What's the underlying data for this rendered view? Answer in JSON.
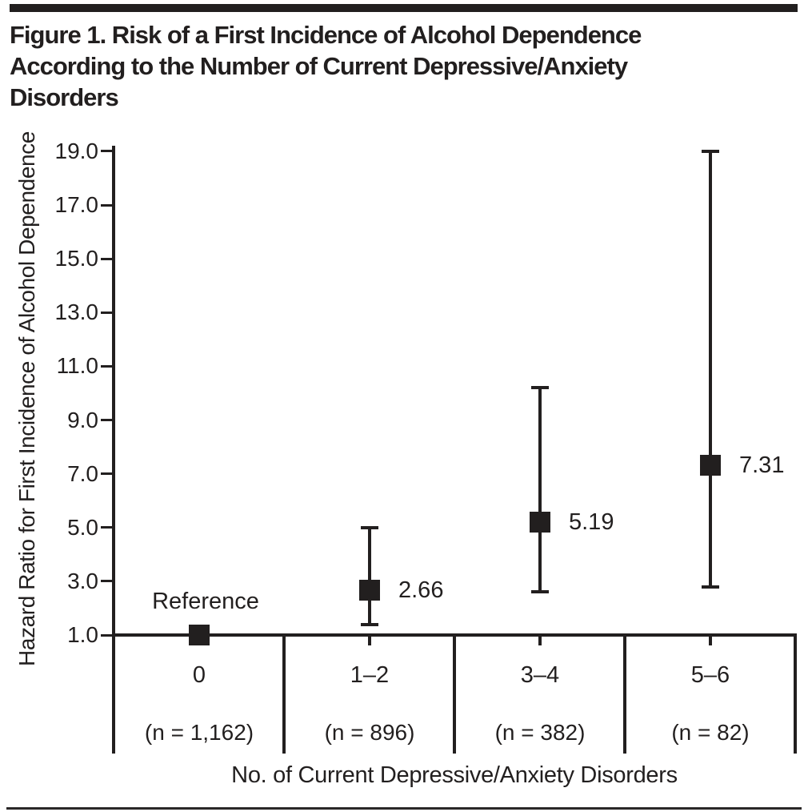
{
  "chart_data": {
    "type": "scatter",
    "title": "Figure 1. Risk of a First Incidence of Alcohol Dependence According to the Number of Current Depressive/Anxiety Disorders",
    "title_lines": [
      "Figure 1. Risk of a First Incidence of Alcohol Dependence",
      "According to the Number of Current Depressive/Anxiety",
      "Disorders"
    ],
    "xlabel": "No. of Current Depressive/Anxiety Disorders",
    "ylabel": "Hazard Ratio for First Incidence of Alcohol Dependence",
    "ylim": [
      1.0,
      19.4
    ],
    "ytick_labels": [
      "1.0",
      "3.0",
      "5.0",
      "7.0",
      "9.0",
      "11.0",
      "13.0",
      "15.0",
      "17.0",
      "19.0"
    ],
    "grid": false,
    "legend": false,
    "marker": "filled-black-square",
    "error_bars": "95% CI whiskers with caps",
    "categories": [
      "0",
      "1–2",
      "3–4",
      "5–6"
    ],
    "points": [
      {
        "category": "0",
        "n_label": "(n = 1,162)",
        "hazard_ratio": 1.0,
        "ci_low": null,
        "ci_high": null,
        "point_label": "Reference"
      },
      {
        "category": "1–2",
        "n_label": "(n = 896)",
        "hazard_ratio": 2.66,
        "ci_low": 1.4,
        "ci_high": 5.0,
        "point_label": "2.66"
      },
      {
        "category": "3–4",
        "n_label": "(n = 382)",
        "hazard_ratio": 5.19,
        "ci_low": 2.6,
        "ci_high": 10.2,
        "point_label": "5.19"
      },
      {
        "category": "5–6",
        "n_label": "(n = 82)",
        "hazard_ratio": 7.31,
        "ci_low": 2.8,
        "ci_high": 19.0,
        "point_label": "7.31"
      }
    ],
    "colors": {
      "ink": "#221f1f",
      "background": "#ffffff"
    }
  }
}
